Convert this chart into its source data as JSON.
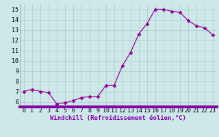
{
  "x": [
    0,
    1,
    2,
    3,
    4,
    5,
    6,
    7,
    8,
    9,
    10,
    11,
    12,
    13,
    14,
    15,
    16,
    17,
    18,
    19,
    20,
    21,
    22,
    23
  ],
  "y": [
    7.0,
    7.2,
    7.0,
    6.9,
    5.8,
    5.9,
    6.1,
    6.4,
    6.5,
    6.5,
    7.6,
    7.6,
    9.5,
    10.8,
    12.6,
    13.6,
    15.0,
    15.0,
    14.8,
    14.7,
    13.9,
    13.4,
    13.2,
    12.5
  ],
  "xlabel": "Windchill (Refroidissement éolien,°C)",
  "ylim": [
    5.5,
    15.5
  ],
  "xlim": [
    -0.5,
    23.5
  ],
  "yticks": [
    6,
    7,
    8,
    9,
    10,
    11,
    12,
    13,
    14,
    15
  ],
  "xticks": [
    0,
    1,
    2,
    3,
    4,
    5,
    6,
    7,
    8,
    9,
    10,
    11,
    12,
    13,
    14,
    15,
    16,
    17,
    18,
    19,
    20,
    21,
    22,
    23
  ],
  "line_color": "#990099",
  "marker": "D",
  "marker_size": 2.5,
  "bg_color": "#cce8e8",
  "grid_color": "#aacccc",
  "xlabel_fontsize": 6.5,
  "tick_fontsize": 6,
  "bottom_bar_color": "#8800aa"
}
